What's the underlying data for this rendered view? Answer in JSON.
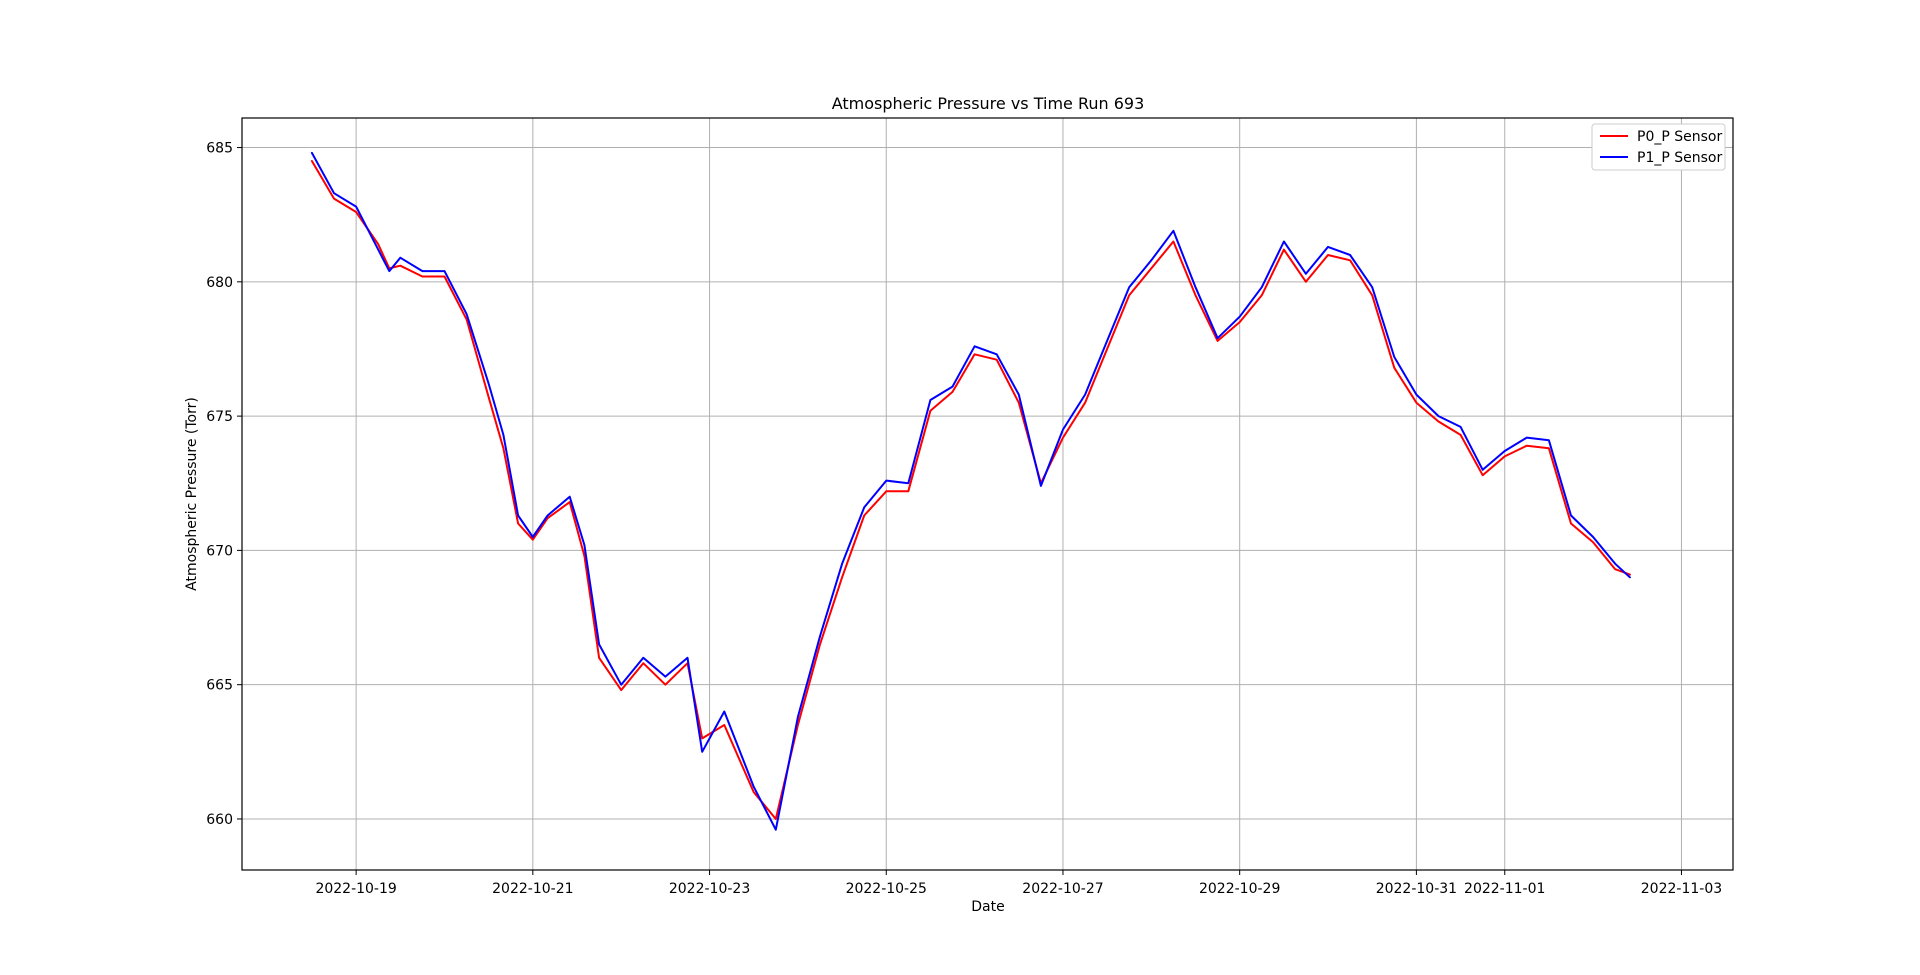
{
  "chart_data": {
    "type": "line",
    "title": "Atmospheric Pressure vs Time Run 693",
    "xlabel": "Date",
    "ylabel": "Atmospheric Pressure (Torr)",
    "xlim": [
      "2022-10-17 17:00",
      "2022-11-03 14:00"
    ],
    "ylim": [
      658.1,
      686.1
    ],
    "x_ticks": [
      "2022-10-19",
      "2022-10-21",
      "2022-10-23",
      "2022-10-25",
      "2022-10-27",
      "2022-10-29",
      "2022-10-31",
      "2022-11-01",
      "2022-11-03"
    ],
    "y_ticks": [
      660,
      665,
      670,
      675,
      680,
      685
    ],
    "grid": true,
    "legend_position": "upper right",
    "series": [
      {
        "name": "P0_P Sensor",
        "color": "#ff0000",
        "points": [
          [
            "2022-10-18 12:00",
            684.5
          ],
          [
            "2022-10-18 18:00",
            683.1
          ],
          [
            "2022-10-19 00:00",
            682.6
          ],
          [
            "2022-10-19 06:00",
            681.4
          ],
          [
            "2022-10-19 09:00",
            680.5
          ],
          [
            "2022-10-19 12:00",
            680.6
          ],
          [
            "2022-10-19 18:00",
            680.2
          ],
          [
            "2022-10-20 00:00",
            680.2
          ],
          [
            "2022-10-20 06:00",
            678.6
          ],
          [
            "2022-10-20 12:00",
            675.7
          ],
          [
            "2022-10-20 16:00",
            673.8
          ],
          [
            "2022-10-20 20:00",
            671.0
          ],
          [
            "2022-10-21 00:00",
            670.4
          ],
          [
            "2022-10-21 04:00",
            671.2
          ],
          [
            "2022-10-21 10:00",
            671.8
          ],
          [
            "2022-10-21 14:00",
            669.8
          ],
          [
            "2022-10-21 18:00",
            666.0
          ],
          [
            "2022-10-22 00:00",
            664.8
          ],
          [
            "2022-10-22 06:00",
            665.8
          ],
          [
            "2022-10-22 12:00",
            665.0
          ],
          [
            "2022-10-22 18:00",
            665.8
          ],
          [
            "2022-10-22 22:00",
            663.0
          ],
          [
            "2022-10-23 04:00",
            663.5
          ],
          [
            "2022-10-23 12:00",
            661.0
          ],
          [
            "2022-10-23 18:00",
            660.0
          ],
          [
            "2022-10-24 00:00",
            663.5
          ],
          [
            "2022-10-24 06:00",
            666.5
          ],
          [
            "2022-10-24 12:00",
            669.0
          ],
          [
            "2022-10-24 18:00",
            671.3
          ],
          [
            "2022-10-25 00:00",
            672.2
          ],
          [
            "2022-10-25 06:00",
            672.2
          ],
          [
            "2022-10-25 12:00",
            675.2
          ],
          [
            "2022-10-25 18:00",
            675.9
          ],
          [
            "2022-10-26 00:00",
            677.3
          ],
          [
            "2022-10-26 06:00",
            677.1
          ],
          [
            "2022-10-26 12:00",
            675.5
          ],
          [
            "2022-10-26 18:00",
            672.5
          ],
          [
            "2022-10-27 00:00",
            674.2
          ],
          [
            "2022-10-27 06:00",
            675.5
          ],
          [
            "2022-10-27 12:00",
            677.5
          ],
          [
            "2022-10-27 18:00",
            679.5
          ],
          [
            "2022-10-28 00:00",
            680.5
          ],
          [
            "2022-10-28 06:00",
            681.5
          ],
          [
            "2022-10-28 12:00",
            679.5
          ],
          [
            "2022-10-28 18:00",
            677.8
          ],
          [
            "2022-10-29 00:00",
            678.5
          ],
          [
            "2022-10-29 06:00",
            679.5
          ],
          [
            "2022-10-29 12:00",
            681.2
          ],
          [
            "2022-10-29 18:00",
            680.0
          ],
          [
            "2022-10-30 00:00",
            681.0
          ],
          [
            "2022-10-30 06:00",
            680.8
          ],
          [
            "2022-10-30 12:00",
            679.5
          ],
          [
            "2022-10-30 18:00",
            676.8
          ],
          [
            "2022-10-31 00:00",
            675.5
          ],
          [
            "2022-10-31 06:00",
            674.8
          ],
          [
            "2022-10-31 12:00",
            674.3
          ],
          [
            "2022-10-31 18:00",
            672.8
          ],
          [
            "2022-11-01 00:00",
            673.5
          ],
          [
            "2022-11-01 06:00",
            673.9
          ],
          [
            "2022-11-01 12:00",
            673.8
          ],
          [
            "2022-11-01 18:00",
            671.0
          ],
          [
            "2022-11-02 00:00",
            670.3
          ],
          [
            "2022-11-02 06:00",
            669.3
          ],
          [
            "2022-11-02 10:00",
            669.1
          ]
        ]
      },
      {
        "name": "P1_P Sensor",
        "color": "#0000ff",
        "points": [
          [
            "2022-10-18 12:00",
            684.8
          ],
          [
            "2022-10-18 18:00",
            683.3
          ],
          [
            "2022-10-19 00:00",
            682.8
          ],
          [
            "2022-10-19 06:00",
            681.2
          ],
          [
            "2022-10-19 09:00",
            680.4
          ],
          [
            "2022-10-19 12:00",
            680.9
          ],
          [
            "2022-10-19 18:00",
            680.4
          ],
          [
            "2022-10-20 00:00",
            680.4
          ],
          [
            "2022-10-20 06:00",
            678.8
          ],
          [
            "2022-10-20 12:00",
            676.2
          ],
          [
            "2022-10-20 16:00",
            674.3
          ],
          [
            "2022-10-20 20:00",
            671.3
          ],
          [
            "2022-10-21 00:00",
            670.5
          ],
          [
            "2022-10-21 04:00",
            671.3
          ],
          [
            "2022-10-21 10:00",
            672.0
          ],
          [
            "2022-10-21 14:00",
            670.2
          ],
          [
            "2022-10-21 18:00",
            666.5
          ],
          [
            "2022-10-22 00:00",
            665.0
          ],
          [
            "2022-10-22 06:00",
            666.0
          ],
          [
            "2022-10-22 12:00",
            665.3
          ],
          [
            "2022-10-22 18:00",
            666.0
          ],
          [
            "2022-10-22 22:00",
            662.5
          ],
          [
            "2022-10-23 04:00",
            664.0
          ],
          [
            "2022-10-23 12:00",
            661.2
          ],
          [
            "2022-10-23 18:00",
            659.6
          ],
          [
            "2022-10-24 00:00",
            663.8
          ],
          [
            "2022-10-24 06:00",
            666.8
          ],
          [
            "2022-10-24 12:00",
            669.5
          ],
          [
            "2022-10-24 18:00",
            671.6
          ],
          [
            "2022-10-25 00:00",
            672.6
          ],
          [
            "2022-10-25 06:00",
            672.5
          ],
          [
            "2022-10-25 12:00",
            675.6
          ],
          [
            "2022-10-25 18:00",
            676.1
          ],
          [
            "2022-10-26 00:00",
            677.6
          ],
          [
            "2022-10-26 06:00",
            677.3
          ],
          [
            "2022-10-26 12:00",
            675.8
          ],
          [
            "2022-10-26 18:00",
            672.4
          ],
          [
            "2022-10-27 00:00",
            674.5
          ],
          [
            "2022-10-27 06:00",
            675.8
          ],
          [
            "2022-10-27 12:00",
            677.8
          ],
          [
            "2022-10-27 18:00",
            679.8
          ],
          [
            "2022-10-28 00:00",
            680.8
          ],
          [
            "2022-10-28 06:00",
            681.9
          ],
          [
            "2022-10-28 12:00",
            679.8
          ],
          [
            "2022-10-28 18:00",
            677.9
          ],
          [
            "2022-10-29 00:00",
            678.7
          ],
          [
            "2022-10-29 06:00",
            679.8
          ],
          [
            "2022-10-29 12:00",
            681.5
          ],
          [
            "2022-10-29 18:00",
            680.3
          ],
          [
            "2022-10-30 00:00",
            681.3
          ],
          [
            "2022-10-30 06:00",
            681.0
          ],
          [
            "2022-10-30 12:00",
            679.8
          ],
          [
            "2022-10-30 18:00",
            677.2
          ],
          [
            "2022-10-31 00:00",
            675.8
          ],
          [
            "2022-10-31 06:00",
            675.0
          ],
          [
            "2022-10-31 12:00",
            674.6
          ],
          [
            "2022-10-31 18:00",
            673.0
          ],
          [
            "2022-11-01 00:00",
            673.7
          ],
          [
            "2022-11-01 06:00",
            674.2
          ],
          [
            "2022-11-01 12:00",
            674.1
          ],
          [
            "2022-11-01 18:00",
            671.3
          ],
          [
            "2022-11-02 00:00",
            670.5
          ],
          [
            "2022-11-02 06:00",
            669.5
          ],
          [
            "2022-11-02 10:00",
            669.0
          ]
        ]
      }
    ]
  }
}
